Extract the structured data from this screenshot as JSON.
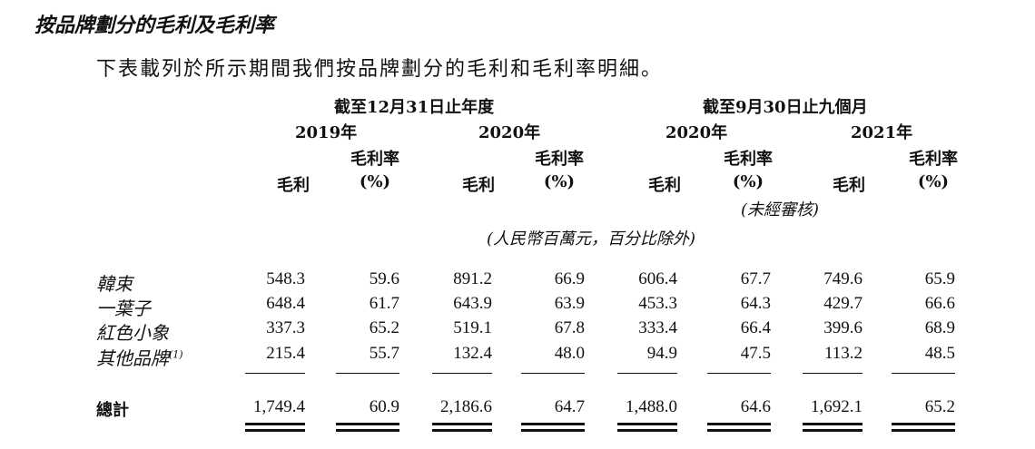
{
  "title": "按品牌劃分的毛利及毛利率",
  "intro": "下表載列於所示期間我們按品牌劃分的毛利和毛利率明細。",
  "period_headers": {
    "year_end": "截至12月31日止年度",
    "nine_months": "截至9月30日止九個月"
  },
  "years": [
    "2019年",
    "2020年",
    "2020年",
    "2021年"
  ],
  "col_profit": "毛利",
  "col_margin_l1": "毛利率",
  "col_margin_l2": "(%)",
  "unaudited": "(未經審核)",
  "unit_note": "(人民幣百萬元，百分比除外)",
  "rows": [
    {
      "label": "韓束",
      "sup": "",
      "values": [
        "548.3",
        "59.6",
        "891.2",
        "66.9",
        "606.4",
        "67.7",
        "749.6",
        "65.9"
      ]
    },
    {
      "label": "一葉子",
      "sup": "",
      "values": [
        "648.4",
        "61.7",
        "643.9",
        "63.9",
        "453.3",
        "64.3",
        "429.7",
        "66.6"
      ]
    },
    {
      "label": "紅色小象",
      "sup": "",
      "values": [
        "337.3",
        "65.2",
        "519.1",
        "67.8",
        "333.4",
        "66.4",
        "399.6",
        "68.9"
      ]
    },
    {
      "label": "其他品牌",
      "sup": "(1)",
      "values": [
        "215.4",
        "55.7",
        "132.4",
        "48.0",
        "94.9",
        "47.5",
        "113.2",
        "48.5"
      ]
    }
  ],
  "total": {
    "label": "總計",
    "values": [
      "1,749.4",
      "60.9",
      "2,186.6",
      "64.7",
      "1,488.0",
      "64.6",
      "1,692.1",
      "65.2"
    ]
  }
}
